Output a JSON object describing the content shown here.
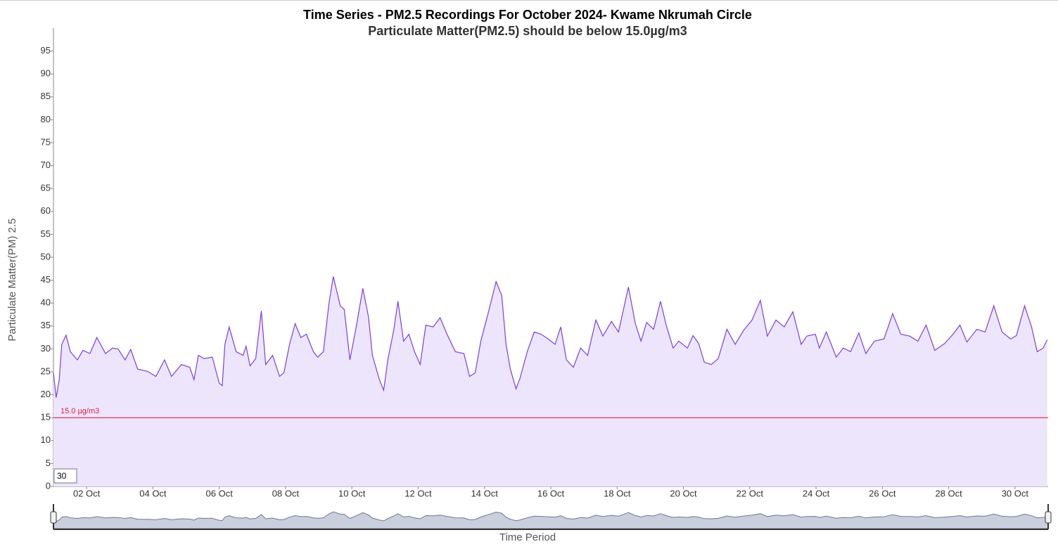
{
  "chart_data": {
    "type": "area",
    "title": "Time Series - PM2.5 Recordings For October 2024- Kwame Nkrumah Circle",
    "subtitle": "Particulate Matter(PM2.5) should be below 15.0µg/m3",
    "y_label": "Particulate Matter(PM) 2.5",
    "x_label": "Time Period",
    "range_input": "30",
    "threshold": {
      "value": 15,
      "label": "15.0 µg/m3",
      "color": "#e0204a"
    },
    "xlim": [
      1,
      31
    ],
    "xticks": [
      {
        "value": 2,
        "label": "02 Oct"
      },
      {
        "value": 4,
        "label": "04 Oct"
      },
      {
        "value": 6,
        "label": "06 Oct"
      },
      {
        "value": 8,
        "label": "08 Oct"
      },
      {
        "value": 10,
        "label": "10 Oct"
      },
      {
        "value": 12,
        "label": "12 Oct"
      },
      {
        "value": 14,
        "label": "14 Oct"
      },
      {
        "value": 16,
        "label": "16 Oct"
      },
      {
        "value": 18,
        "label": "18 Oct"
      },
      {
        "value": 20,
        "label": "20 Oct"
      },
      {
        "value": 22,
        "label": "22 Oct"
      },
      {
        "value": 24,
        "label": "24 Oct"
      },
      {
        "value": 26,
        "label": "26 Oct"
      },
      {
        "value": 28,
        "label": "28 Oct"
      },
      {
        "value": 30,
        "label": "30 Oct"
      }
    ],
    "ylim": [
      0,
      100
    ],
    "yticks": [
      0,
      5,
      10,
      15,
      20,
      25,
      30,
      35,
      40,
      45,
      50,
      55,
      60,
      65,
      70,
      75,
      80,
      85,
      90,
      95
    ],
    "series": [
      {
        "color": "#7b3fe4",
        "fill": "#ede5fb",
        "x": [
          1.0,
          1.08,
          1.17,
          1.25,
          1.38,
          1.51,
          1.72,
          1.89,
          2.1,
          2.31,
          2.57,
          2.78,
          2.95,
          3.16,
          3.33,
          3.54,
          3.84,
          4.09,
          4.35,
          4.56,
          4.86,
          5.11,
          5.24,
          5.37,
          5.54,
          5.79,
          6.0,
          6.09,
          6.17,
          6.3,
          6.51,
          6.72,
          6.81,
          6.93,
          7.1,
          7.27,
          7.4,
          7.61,
          7.82,
          7.95,
          8.12,
          8.29,
          8.46,
          8.63,
          8.84,
          8.97,
          9.14,
          9.31,
          9.44,
          9.65,
          9.77,
          9.94,
          10.11,
          10.33,
          10.5,
          10.62,
          10.83,
          10.96,
          11.09,
          11.26,
          11.39,
          11.56,
          11.72,
          11.89,
          12.06,
          12.23,
          12.45,
          12.66,
          12.87,
          13.12,
          13.38,
          13.55,
          13.72,
          13.89,
          14.14,
          14.35,
          14.52,
          14.65,
          14.78,
          14.95,
          15.07,
          15.29,
          15.5,
          15.71,
          15.92,
          16.13,
          16.3,
          16.47,
          16.68,
          16.9,
          17.11,
          17.36,
          17.57,
          17.83,
          18.04,
          18.34,
          18.55,
          18.72,
          18.89,
          19.1,
          19.31,
          19.48,
          19.69,
          19.86,
          20.12,
          20.29,
          20.46,
          20.63,
          20.84,
          21.05,
          21.31,
          21.56,
          21.81,
          22.07,
          22.32,
          22.53,
          22.79,
          23.04,
          23.3,
          23.55,
          23.72,
          23.98,
          24.1,
          24.31,
          24.61,
          24.82,
          25.04,
          25.29,
          25.5,
          25.76,
          26.05,
          26.31,
          26.56,
          26.82,
          27.07,
          27.32,
          27.58,
          27.88,
          28.13,
          28.34,
          28.55,
          28.85,
          29.1,
          29.36,
          29.61,
          29.87,
          30.04,
          30.29,
          30.5,
          30.67,
          30.85,
          30.97
        ],
        "values": [
          24.8,
          19.4,
          23,
          31,
          33,
          29.4,
          27.6,
          29.7,
          29,
          32.5,
          29,
          30.2,
          30,
          27.6,
          29.9,
          25.6,
          25.1,
          24,
          27.6,
          24,
          26.6,
          26,
          23.3,
          28.6,
          27.9,
          28.2,
          22.5,
          22,
          31,
          34.8,
          29.4,
          28.6,
          30.6,
          26.3,
          27.9,
          38.3,
          26.6,
          28.6,
          24,
          24.8,
          31,
          35.5,
          32.5,
          33.2,
          29.4,
          28.2,
          29.4,
          40,
          45.8,
          39.4,
          38.6,
          27.6,
          34,
          43.2,
          37,
          28.6,
          23.3,
          21,
          27.9,
          34,
          40.4,
          31.7,
          33.2,
          29.4,
          26.6,
          35.2,
          34.8,
          36.8,
          33.2,
          29.4,
          29,
          24,
          24.8,
          31.7,
          38.6,
          44.7,
          41.7,
          31,
          25.6,
          21.3,
          23.6,
          29.4,
          33.7,
          33.2,
          32.2,
          31,
          34.8,
          27.6,
          26,
          30.2,
          28.6,
          36.3,
          32.8,
          36,
          33.7,
          43.5,
          35.5,
          31.7,
          35.8,
          34.3,
          40.4,
          35.2,
          30.2,
          31.7,
          30.2,
          32.9,
          31.2,
          27.1,
          26.6,
          27.9,
          34.3,
          31,
          34,
          36.3,
          40.6,
          32.8,
          36.3,
          34.8,
          38.1,
          31,
          32.8,
          33.2,
          30.2,
          33.7,
          28.2,
          30.2,
          29.4,
          33.5,
          29,
          31.7,
          32.2,
          37.7,
          33.2,
          32.8,
          31.7,
          35.2,
          29.7,
          31.2,
          33.2,
          35.2,
          31.5,
          34.3,
          33.7,
          39.4,
          33.7,
          32.2,
          32.9,
          39.4,
          34.8,
          29.4,
          30.2,
          32
        ]
      }
    ]
  }
}
